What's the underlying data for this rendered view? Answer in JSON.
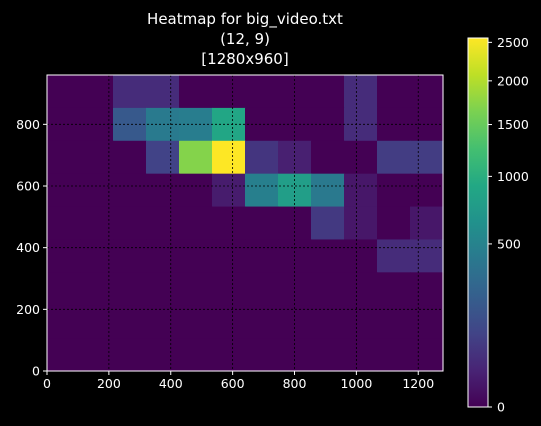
{
  "chart_data": {
    "type": "heatmap",
    "title_lines": [
      "Heatmap for big_video.txt",
      "(12, 9)",
      "[1280x960]"
    ],
    "xlabel": "",
    "ylabel": "",
    "xlim": [
      0,
      1280
    ],
    "ylim": [
      0,
      960
    ],
    "grid_shape": [
      12,
      9
    ],
    "x_ticks": [
      0,
      200,
      400,
      600,
      800,
      1000,
      1200
    ],
    "y_ticks": [
      0,
      200,
      400,
      600,
      800
    ],
    "colorbar": {
      "range": [
        0,
        2560
      ],
      "scale": "sqrt",
      "colormap": "viridis",
      "ticks": [
        0,
        500,
        1000,
        1500,
        2000,
        2500
      ]
    },
    "grid": true,
    "background": "#000000",
    "rows_top_to_bottom": [
      [
        0,
        0,
        40,
        40,
        0,
        0,
        0,
        0,
        0,
        40,
        0,
        0
      ],
      [
        0,
        0,
        200,
        430,
        450,
        900,
        0,
        0,
        0,
        40,
        0,
        0
      ],
      [
        0,
        0,
        0,
        100,
        1700,
        2560,
        60,
        20,
        0,
        0,
        80,
        80
      ],
      [
        0,
        0,
        0,
        0,
        0,
        15,
        470,
        790,
        420,
        10,
        0,
        0
      ],
      [
        0,
        0,
        0,
        0,
        0,
        0,
        0,
        0,
        70,
        10,
        0,
        10
      ],
      [
        0,
        0,
        0,
        0,
        0,
        0,
        0,
        0,
        0,
        0,
        40,
        40
      ],
      [
        0,
        0,
        0,
        0,
        0,
        0,
        0,
        0,
        0,
        0,
        0,
        0
      ],
      [
        0,
        0,
        0,
        0,
        0,
        0,
        0,
        0,
        0,
        0,
        0,
        0
      ],
      [
        0,
        0,
        0,
        0,
        0,
        0,
        0,
        0,
        0,
        0,
        0,
        0
      ]
    ]
  }
}
